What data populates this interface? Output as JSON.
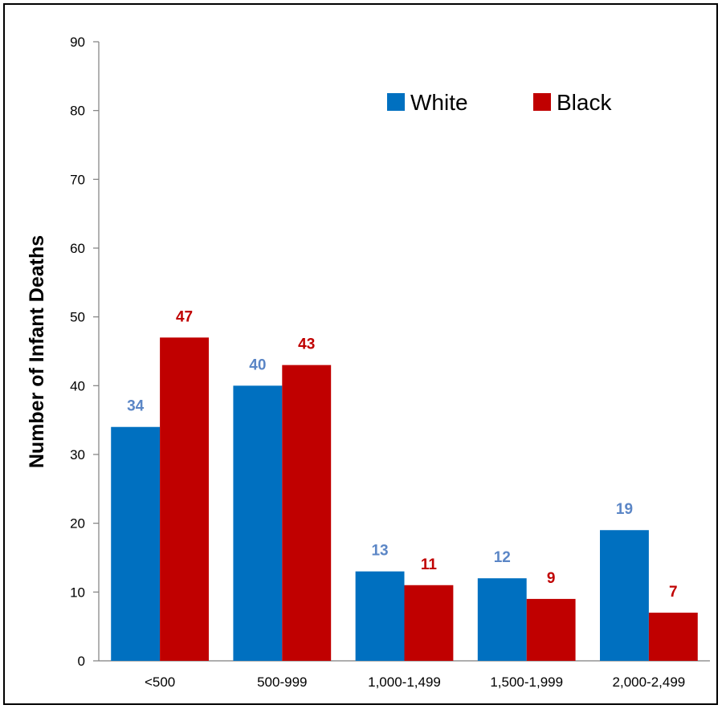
{
  "chart_data": {
    "type": "bar",
    "title": "",
    "xlabel": "",
    "ylabel": "Number of Infant Deaths",
    "ylim": [
      0,
      90
    ],
    "yticks": [
      "0",
      "10",
      "20",
      "30",
      "40",
      "50",
      "60",
      "70",
      "80",
      "90"
    ],
    "categories": [
      "<500",
      "500-999",
      "1,000-1,499",
      "1,500-1,999",
      "2,000-2,499"
    ],
    "series": [
      {
        "name": "White",
        "values": [
          34,
          40,
          13,
          12,
          19
        ],
        "color": "#0070C0",
        "label_color": "#5B86C6"
      },
      {
        "name": "Black",
        "values": [
          47,
          43,
          11,
          9,
          7
        ],
        "color": "#C00000",
        "label_color": "#C00000"
      }
    ],
    "legend": "top-right",
    "grid": false
  }
}
